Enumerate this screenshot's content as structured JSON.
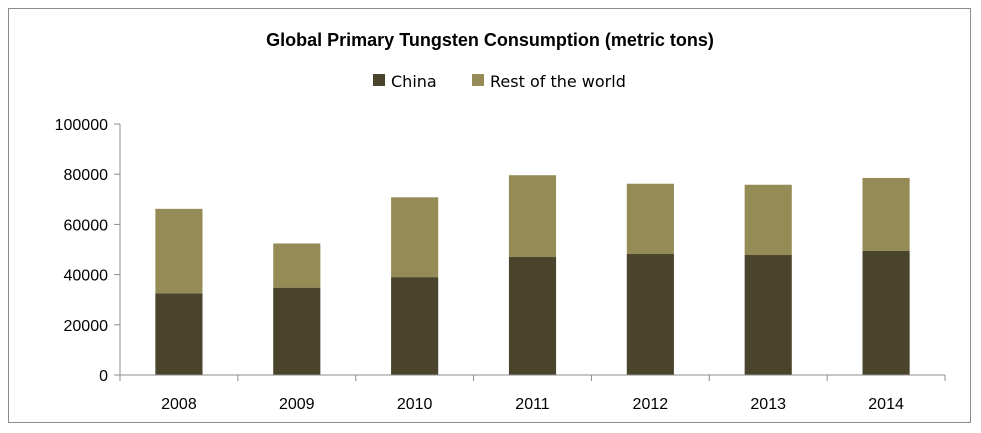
{
  "chart_data": {
    "type": "bar",
    "stacked": true,
    "title": "Global Primary Tungsten Consumption (metric tons)",
    "xlabel": "",
    "ylabel": "",
    "categories": [
      "2008",
      "2009",
      "2010",
      "2011",
      "2012",
      "2013",
      "2014"
    ],
    "series": [
      {
        "name": "China",
        "color": "#4a442c",
        "values": [
          32500,
          34800,
          39000,
          47000,
          48200,
          47800,
          49500
        ]
      },
      {
        "name": "Rest of the world",
        "color": "#958b56",
        "values": [
          33700,
          17600,
          31800,
          32600,
          28000,
          28000,
          29000
        ]
      }
    ],
    "ylim": [
      0,
      100000
    ],
    "yticks": [
      "0",
      "20000",
      "40000",
      "60000",
      "80000",
      "100000"
    ],
    "legend_position": "top-center",
    "grid": false
  }
}
